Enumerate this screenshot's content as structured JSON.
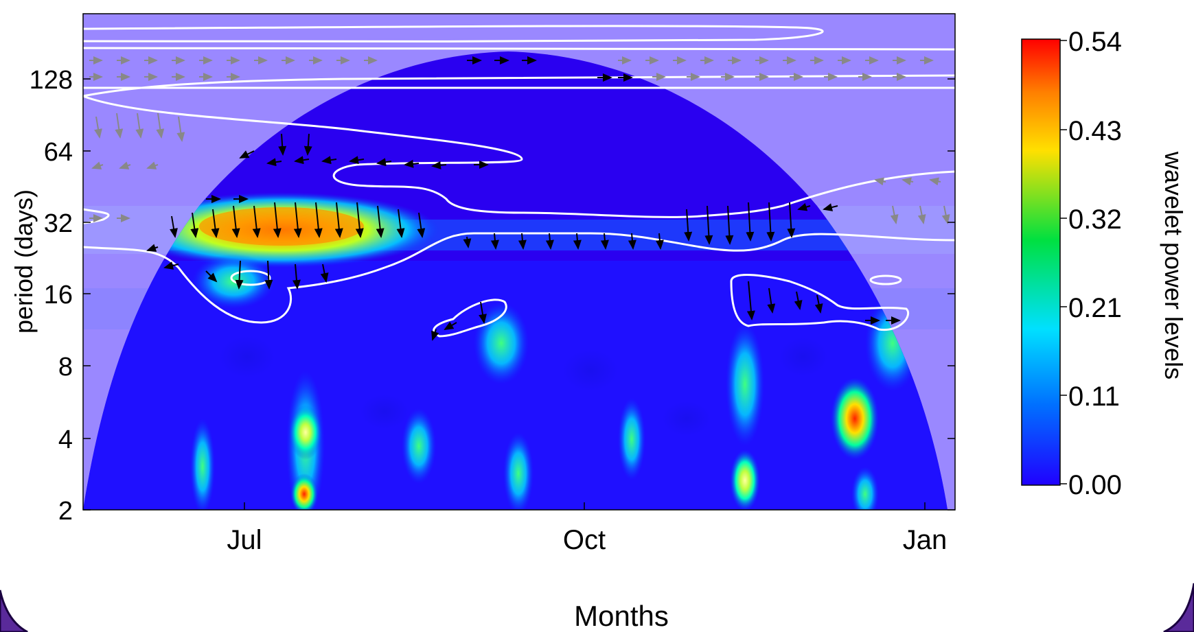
{
  "chart_data": {
    "type": "heatmap",
    "title": "",
    "xlabel": "Months",
    "ylabel": "period (days)",
    "x_ticks": [
      "Jul",
      "Oct",
      "Jan"
    ],
    "y_ticks": [
      2,
      4,
      8,
      16,
      32,
      64,
      128
    ],
    "y_scale": "log2",
    "ylim": [
      2,
      256
    ],
    "colorbar": {
      "label": "wavelet power levels",
      "ticks": [
        "0.54",
        "0.43",
        "0.32",
        "0.21",
        "0.11",
        "0.00"
      ],
      "min": 0.0,
      "max": 0.54,
      "colors": [
        "#2000ff",
        "#0070ff",
        "#00e0ff",
        "#00e040",
        "#ffe000",
        "#ff8000",
        "#ff0000"
      ]
    },
    "hotspots": [
      {
        "month_pos": 0.2,
        "period": 28,
        "power": 0.5
      },
      {
        "month_pos": 0.26,
        "period": 2.6,
        "power": 0.54
      },
      {
        "month_pos": 0.26,
        "period": 4.2,
        "power": 0.4
      },
      {
        "month_pos": 0.89,
        "period": 5.6,
        "power": 0.45
      },
      {
        "month_pos": 0.76,
        "period": 2.8,
        "power": 0.3
      }
    ],
    "cone_of_influence": true,
    "significance_contours": "white",
    "phase_arrows": true,
    "legend": "right"
  }
}
